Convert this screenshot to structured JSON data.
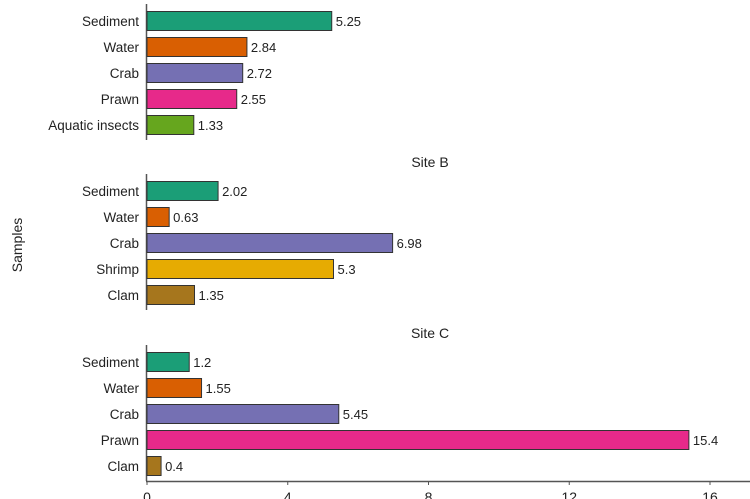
{
  "chart_data": {
    "type": "bar",
    "orientation": "horizontal",
    "ylabel": "Samples",
    "xlabel": "",
    "xlim": [
      0,
      16
    ],
    "xticks": [
      0,
      4,
      8,
      12,
      16
    ],
    "grid": false,
    "panels": [
      {
        "title": "",
        "categories": [
          "Sediment",
          "Water",
          "Crab",
          "Prawn",
          "Aquatic insects"
        ],
        "values": [
          5.25,
          2.84,
          2.72,
          2.55,
          1.33
        ],
        "labels": [
          "5.25",
          "2.84",
          "2.72",
          "2.55",
          "1.33"
        ]
      },
      {
        "title": "Site B",
        "categories": [
          "Sediment",
          "Water",
          "Crab",
          "Shrimp",
          "Clam"
        ],
        "values": [
          2.02,
          0.63,
          6.98,
          5.3,
          1.35
        ],
        "labels": [
          "2.02",
          "0.63",
          "6.98",
          "5.3",
          "1.35"
        ]
      },
      {
        "title": "Site C",
        "categories": [
          "Sediment",
          "Water",
          "Crab",
          "Prawn",
          "Clam"
        ],
        "values": [
          1.2,
          1.55,
          5.45,
          15.4,
          0.4
        ],
        "labels": [
          "1.2",
          "1.55",
          "5.45",
          "15.4",
          "0.4"
        ]
      }
    ],
    "colors": {
      "Sediment": "#1b9e77",
      "Water": "#d95f02",
      "Crab": "#7570b3",
      "Prawn": "#e7298a",
      "Aquatic insects": "#66a61e",
      "Shrimp": "#e6ab02",
      "Clam": "#a6761d"
    }
  }
}
